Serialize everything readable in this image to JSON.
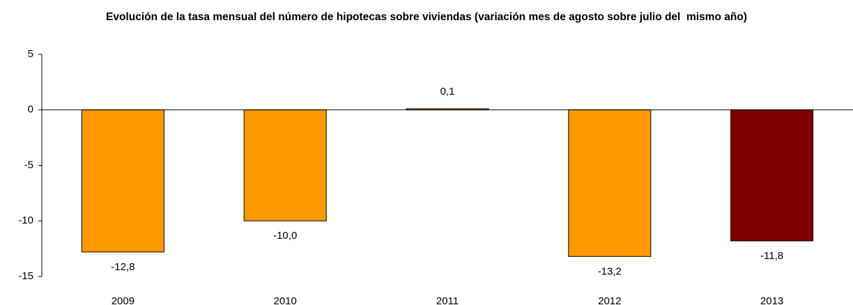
{
  "chart_data": {
    "type": "bar",
    "title": "Evolución de la tasa mensual del número de hipotecas sobre viviendas (variación mes de agosto sobre julio del  mismo año)",
    "categories": [
      "2009",
      "2010",
      "2011",
      "2012",
      "2013"
    ],
    "values": [
      -12.8,
      -10.0,
      0.1,
      -13.2,
      -11.8
    ],
    "value_labels": [
      "-12,8",
      "-10,0",
      "0,1",
      "-13,2",
      "-11,8"
    ],
    "colors": [
      "#ff9900",
      "#ff9900",
      "#ff9900",
      "#ff9900",
      "#800000"
    ],
    "ylim": [
      -15,
      5
    ],
    "yticks": [
      5,
      0,
      -5,
      -10,
      -15
    ],
    "grid": false
  }
}
